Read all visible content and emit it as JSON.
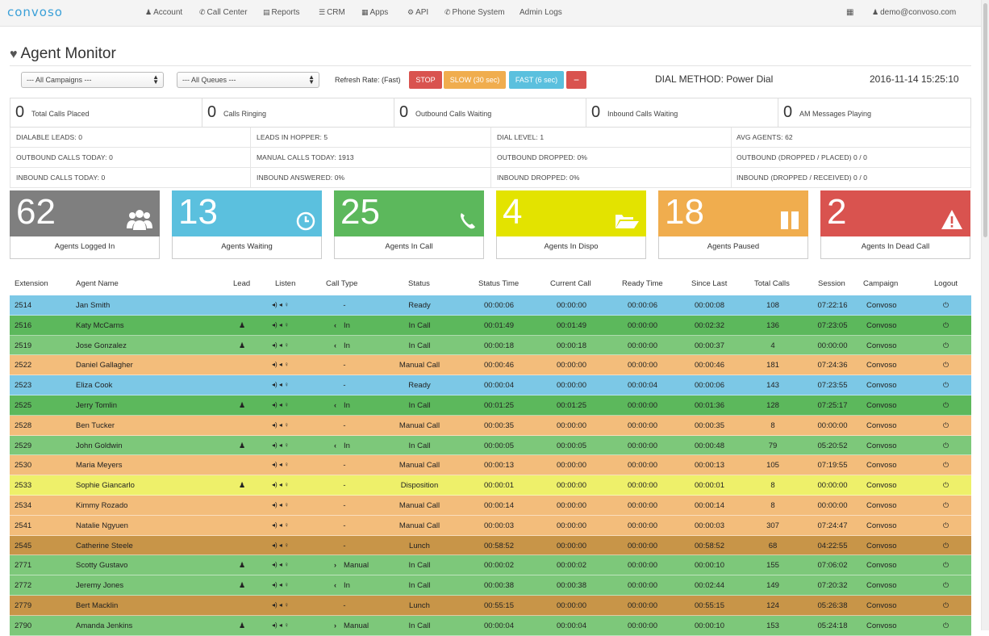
{
  "app": {
    "logo": "convoso",
    "nav": [
      {
        "icon": "user-icon",
        "label": "Account"
      },
      {
        "icon": "phone-icon",
        "label": "Call Center"
      },
      {
        "icon": "bar-chart-icon",
        "label": "Reports"
      },
      {
        "icon": "list-icon",
        "label": "CRM"
      },
      {
        "icon": "grid-icon",
        "label": "Apps"
      },
      {
        "icon": "gear-icon",
        "label": "API"
      },
      {
        "icon": "phone-icon",
        "label": "Phone System"
      },
      {
        "icon": "",
        "label": "Admin Logs"
      }
    ],
    "user": "demo@convoso.com"
  },
  "page": {
    "title": "Agent Monitor",
    "campaign_select": "--- All Campaigns ---",
    "queue_select": "--- All Queues ---",
    "refresh_label": "Refresh Rate: (Fast)",
    "buttons": {
      "stop": "STOP",
      "slow": "SLOW (30 sec)",
      "fast": "FAST (6 sec)",
      "minus": "−"
    },
    "dial_method": "DIAL METHOD: Power Dial",
    "datetime": "2016-11-14 15:25:10"
  },
  "counters": [
    {
      "value": "0",
      "label": "Total Calls Placed"
    },
    {
      "value": "0",
      "label": "Calls Ringing"
    },
    {
      "value": "0",
      "label": "Outbound Calls Waiting"
    },
    {
      "value": "0",
      "label": "Inbound Calls Waiting"
    },
    {
      "value": "0",
      "label": "AM Messages Playing"
    }
  ],
  "stats": [
    [
      "DIALABLE LEADS: 0",
      "LEADS IN HOPPER: 5",
      "DIAL LEVEL: 1",
      "AVG AGENTS: 62"
    ],
    [
      "OUTBOUND CALLS TODAY: 0",
      "MANUAL CALLS TODAY: 1913",
      "OUTBOUND DROPPED: 0%",
      "OUTBOUND (DROPPED / PLACED) 0 / 0"
    ],
    [
      "INBOUND CALLS TODAY: 0",
      "INBOUND ANSWERED: 0%",
      "INBOUND DROPPED: 0%",
      "INBOUND (DROPPED / RECEIVED) 0 / 0"
    ]
  ],
  "tiles": [
    {
      "value": "62",
      "label": "Agents Logged In",
      "color": "#7f7f7f",
      "icon": "users-icon"
    },
    {
      "value": "13",
      "label": "Agents Waiting",
      "color": "#5bc0de",
      "icon": "clock-icon"
    },
    {
      "value": "25",
      "label": "Agents In Call",
      "color": "#5cb85c",
      "icon": "phone-icon"
    },
    {
      "value": "4",
      "label": "Agents In Dispo",
      "color": "#e3e300",
      "icon": "folder-open-icon"
    },
    {
      "value": "18",
      "label": "Agents Paused",
      "color": "#f0ad4e",
      "icon": "pause-icon"
    },
    {
      "value": "2",
      "label": "Agents In Dead Call",
      "color": "#d9534f",
      "icon": "warning-icon"
    }
  ],
  "table": {
    "headers": [
      "Extension",
      "Agent Name",
      "Lead",
      "Listen",
      "Call Type",
      "Status",
      "Status Time",
      "Current Call",
      "Ready Time",
      "Since Last",
      "Total Calls",
      "Session",
      "Campaign",
      "Logout"
    ],
    "rows": [
      {
        "ext": "2514",
        "name": "Jan Smith",
        "lead": "",
        "calltype": "-",
        "dir": "",
        "status": "Ready",
        "st": "00:00:06",
        "cc": "00:00:00",
        "rt": "00:00:06",
        "sl": "00:00:08",
        "tc": "108",
        "ses": "07:22:16",
        "camp": "Convoso",
        "color": "#7cc8e6"
      },
      {
        "ext": "2516",
        "name": "Katy McCarns",
        "lead": "user",
        "calltype": "In",
        "dir": "in",
        "status": "In Call",
        "st": "00:01:49",
        "cc": "00:01:49",
        "rt": "00:00:00",
        "sl": "00:02:32",
        "tc": "136",
        "ses": "07:23:05",
        "camp": "Convoso",
        "color": "#5cb85c"
      },
      {
        "ext": "2519",
        "name": "Jose Gonzalez",
        "lead": "user",
        "calltype": "In",
        "dir": "in",
        "status": "In Call",
        "st": "00:00:18",
        "cc": "00:00:18",
        "rt": "00:00:00",
        "sl": "00:00:37",
        "tc": "4",
        "ses": "00:00:00",
        "camp": "Convoso",
        "color": "#7dc87a"
      },
      {
        "ext": "2522",
        "name": "Daniel Gallagher",
        "lead": "",
        "calltype": "-",
        "dir": "",
        "status": "Manual Call",
        "st": "00:00:46",
        "cc": "00:00:00",
        "rt": "00:00:00",
        "sl": "00:00:46",
        "tc": "181",
        "ses": "07:24:36",
        "camp": "Convoso",
        "color": "#f3bd7b"
      },
      {
        "ext": "2523",
        "name": "Eliza Cook",
        "lead": "",
        "calltype": "-",
        "dir": "",
        "status": "Ready",
        "st": "00:00:04",
        "cc": "00:00:00",
        "rt": "00:00:04",
        "sl": "00:00:06",
        "tc": "143",
        "ses": "07:23:55",
        "camp": "Convoso",
        "color": "#7cc8e6"
      },
      {
        "ext": "2525",
        "name": "Jerry Tomlin",
        "lead": "user",
        "calltype": "In",
        "dir": "in",
        "status": "In Call",
        "st": "00:01:25",
        "cc": "00:01:25",
        "rt": "00:00:00",
        "sl": "00:01:36",
        "tc": "128",
        "ses": "07:25:17",
        "camp": "Convoso",
        "color": "#5cb85c"
      },
      {
        "ext": "2528",
        "name": "Ben Tucker",
        "lead": "",
        "calltype": "-",
        "dir": "",
        "status": "Manual Call",
        "st": "00:00:35",
        "cc": "00:00:00",
        "rt": "00:00:00",
        "sl": "00:00:35",
        "tc": "8",
        "ses": "00:00:00",
        "camp": "Convoso",
        "color": "#f3bd7b"
      },
      {
        "ext": "2529",
        "name": "John Goldwin",
        "lead": "user",
        "calltype": "In",
        "dir": "in",
        "status": "In Call",
        "st": "00:00:05",
        "cc": "00:00:05",
        "rt": "00:00:00",
        "sl": "00:00:48",
        "tc": "79",
        "ses": "05:20:52",
        "camp": "Convoso",
        "color": "#7dc87a"
      },
      {
        "ext": "2530",
        "name": "Maria Meyers",
        "lead": "",
        "calltype": "-",
        "dir": "",
        "status": "Manual Call",
        "st": "00:00:13",
        "cc": "00:00:00",
        "rt": "00:00:00",
        "sl": "00:00:13",
        "tc": "105",
        "ses": "07:19:55",
        "camp": "Convoso",
        "color": "#f3bd7b"
      },
      {
        "ext": "2533",
        "name": "Sophie Giancarlo",
        "lead": "user",
        "calltype": "-",
        "dir": "",
        "status": "Disposition",
        "st": "00:00:01",
        "cc": "00:00:00",
        "rt": "00:00:00",
        "sl": "00:00:01",
        "tc": "8",
        "ses": "00:00:00",
        "camp": "Convoso",
        "color": "#eef06a"
      },
      {
        "ext": "2534",
        "name": "Kimmy Rozado",
        "lead": "",
        "calltype": "-",
        "dir": "",
        "status": "Manual Call",
        "st": "00:00:14",
        "cc": "00:00:00",
        "rt": "00:00:00",
        "sl": "00:00:14",
        "tc": "8",
        "ses": "00:00:00",
        "camp": "Convoso",
        "color": "#f3bd7b"
      },
      {
        "ext": "2541",
        "name": "Natalie Ngyuen",
        "lead": "",
        "calltype": "-",
        "dir": "",
        "status": "Manual Call",
        "st": "00:00:03",
        "cc": "00:00:00",
        "rt": "00:00:00",
        "sl": "00:00:03",
        "tc": "307",
        "ses": "07:24:47",
        "camp": "Convoso",
        "color": "#f3bd7b"
      },
      {
        "ext": "2545",
        "name": "Catherine Steele",
        "lead": "",
        "calltype": "-",
        "dir": "",
        "status": "Lunch",
        "st": "00:58:52",
        "cc": "00:00:00",
        "rt": "00:00:00",
        "sl": "00:58:52",
        "tc": "68",
        "ses": "04:22:55",
        "camp": "Convoso",
        "color": "#c89548"
      },
      {
        "ext": "2771",
        "name": "Scotty Gustavo",
        "lead": "user",
        "calltype": "Manual",
        "dir": "out",
        "status": "In Call",
        "st": "00:00:02",
        "cc": "00:00:02",
        "rt": "00:00:00",
        "sl": "00:00:10",
        "tc": "155",
        "ses": "07:06:02",
        "camp": "Convoso",
        "color": "#7dc87a"
      },
      {
        "ext": "2772",
        "name": "Jeremy Jones",
        "lead": "user",
        "calltype": "In",
        "dir": "in",
        "status": "In Call",
        "st": "00:00:38",
        "cc": "00:00:38",
        "rt": "00:00:00",
        "sl": "00:02:44",
        "tc": "149",
        "ses": "07:20:32",
        "camp": "Convoso",
        "color": "#7dc87a"
      },
      {
        "ext": "2779",
        "name": "Bert Macklin",
        "lead": "",
        "calltype": "-",
        "dir": "",
        "status": "Lunch",
        "st": "00:55:15",
        "cc": "00:00:00",
        "rt": "00:00:00",
        "sl": "00:55:15",
        "tc": "124",
        "ses": "05:26:38",
        "camp": "Convoso",
        "color": "#c89548"
      },
      {
        "ext": "2790",
        "name": "Amanda Jenkins",
        "lead": "user",
        "calltype": "Manual",
        "dir": "out",
        "status": "In Call",
        "st": "00:00:04",
        "cc": "00:00:04",
        "rt": "00:00:00",
        "sl": "00:00:10",
        "tc": "153",
        "ses": "05:24:18",
        "camp": "Convoso",
        "color": "#7dc87a"
      }
    ]
  }
}
